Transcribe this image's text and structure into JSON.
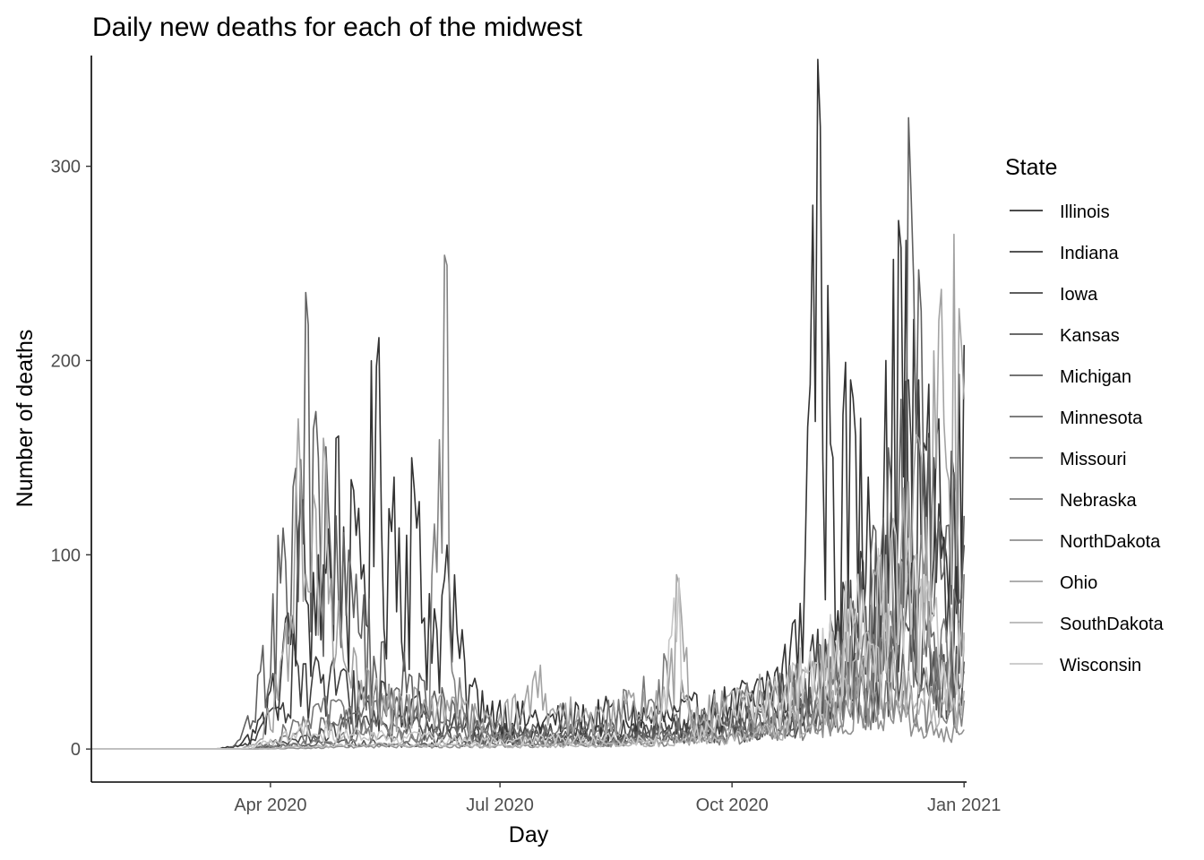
{
  "chart_data": {
    "type": "line",
    "title": "Daily new deaths for each of the midwest",
    "xlabel": "Day",
    "ylabel": "Number of deaths",
    "x_range": [
      "2020-01-21",
      "2021-01-02"
    ],
    "x_ticks": [
      {
        "date": "2020-04-01",
        "label": "Apr 2020"
      },
      {
        "date": "2020-07-01",
        "label": "Jul 2020"
      },
      {
        "date": "2020-10-01",
        "label": "Oct 2020"
      },
      {
        "date": "2021-01-01",
        "label": "Jan 2021"
      }
    ],
    "ylim": [
      -17,
      357
    ],
    "y_ticks": [
      0,
      100,
      200,
      300
    ],
    "grid": false,
    "legend": {
      "title": "State",
      "placement": "right"
    },
    "series": [
      {
        "name": "Illinois",
        "color": "#333333",
        "points": [
          [
            "2020-01-21",
            0
          ],
          [
            "2020-03-10",
            0
          ],
          [
            "2020-03-18",
            2
          ],
          [
            "2020-03-25",
            10
          ],
          [
            "2020-04-01",
            30
          ],
          [
            "2020-04-08",
            70
          ],
          [
            "2020-04-13",
            125
          ],
          [
            "2020-04-20",
            100
          ],
          [
            "2020-04-27",
            160
          ],
          [
            "2020-05-05",
            110
          ],
          [
            "2020-05-13",
            197
          ],
          [
            "2020-05-20",
            140
          ],
          [
            "2020-05-27",
            150
          ],
          [
            "2020-06-03",
            80
          ],
          [
            "2020-06-10",
            105
          ],
          [
            "2020-06-17",
            45
          ],
          [
            "2020-06-24",
            30
          ],
          [
            "2020-07-01",
            25
          ],
          [
            "2020-07-15",
            20
          ],
          [
            "2020-08-01",
            22
          ],
          [
            "2020-08-15",
            24
          ],
          [
            "2020-09-01",
            22
          ],
          [
            "2020-09-15",
            25
          ],
          [
            "2020-10-01",
            30
          ],
          [
            "2020-10-15",
            40
          ],
          [
            "2020-10-28",
            75
          ],
          [
            "2020-11-02",
            280
          ],
          [
            "2020-11-04",
            355
          ],
          [
            "2020-11-10",
            150
          ],
          [
            "2020-11-17",
            190
          ],
          [
            "2020-11-24",
            140
          ],
          [
            "2020-12-01",
            200
          ],
          [
            "2020-12-07",
            258
          ],
          [
            "2020-12-14",
            190
          ],
          [
            "2020-12-21",
            160
          ],
          [
            "2020-12-28",
            140
          ],
          [
            "2021-01-01",
            208
          ]
        ]
      },
      {
        "name": "Indiana",
        "color": "#3d3d3d",
        "points": [
          [
            "2020-01-21",
            0
          ],
          [
            "2020-03-15",
            0
          ],
          [
            "2020-03-25",
            5
          ],
          [
            "2020-04-01",
            20
          ],
          [
            "2020-04-10",
            60
          ],
          [
            "2020-04-20",
            45
          ],
          [
            "2020-05-01",
            40
          ],
          [
            "2020-05-15",
            35
          ],
          [
            "2020-06-01",
            25
          ],
          [
            "2020-06-15",
            15
          ],
          [
            "2020-07-01",
            12
          ],
          [
            "2020-08-01",
            14
          ],
          [
            "2020-09-01",
            15
          ],
          [
            "2020-10-01",
            20
          ],
          [
            "2020-10-20",
            35
          ],
          [
            "2020-11-01",
            50
          ],
          [
            "2020-11-15",
            80
          ],
          [
            "2020-12-01",
            110
          ],
          [
            "2020-12-10",
            190
          ],
          [
            "2020-12-20",
            150
          ],
          [
            "2021-01-01",
            105
          ]
        ]
      },
      {
        "name": "Iowa",
        "color": "#474747",
        "points": [
          [
            "2020-01-21",
            0
          ],
          [
            "2020-03-25",
            0
          ],
          [
            "2020-04-10",
            5
          ],
          [
            "2020-05-01",
            15
          ],
          [
            "2020-05-20",
            20
          ],
          [
            "2020-06-15",
            8
          ],
          [
            "2020-07-15",
            6
          ],
          [
            "2020-08-15",
            10
          ],
          [
            "2020-09-15",
            12
          ],
          [
            "2020-10-15",
            15
          ],
          [
            "2020-11-10",
            30
          ],
          [
            "2020-11-25",
            50
          ],
          [
            "2020-12-05",
            65
          ],
          [
            "2020-12-20",
            45
          ],
          [
            "2021-01-01",
            60
          ]
        ]
      },
      {
        "name": "Kansas",
        "color": "#555555",
        "points": [
          [
            "2020-01-21",
            0
          ],
          [
            "2020-03-25",
            0
          ],
          [
            "2020-04-10",
            3
          ],
          [
            "2020-05-01",
            5
          ],
          [
            "2020-06-01",
            3
          ],
          [
            "2020-07-15",
            8
          ],
          [
            "2020-08-15",
            6
          ],
          [
            "2020-09-15",
            15
          ],
          [
            "2020-10-15",
            20
          ],
          [
            "2020-11-15",
            40
          ],
          [
            "2020-12-01",
            60
          ],
          [
            "2020-12-10",
            90
          ],
          [
            "2020-12-20",
            50
          ],
          [
            "2021-01-01",
            45
          ]
        ]
      },
      {
        "name": "Michigan",
        "color": "#606060",
        "points": [
          [
            "2020-01-21",
            0
          ],
          [
            "2020-03-15",
            0
          ],
          [
            "2020-03-20",
            5
          ],
          [
            "2020-03-28",
            40
          ],
          [
            "2020-04-04",
            110
          ],
          [
            "2020-04-10",
            135
          ],
          [
            "2020-04-15",
            235
          ],
          [
            "2020-04-20",
            150
          ],
          [
            "2020-04-27",
            120
          ],
          [
            "2020-05-05",
            90
          ],
          [
            "2020-05-15",
            55
          ],
          [
            "2020-06-01",
            35
          ],
          [
            "2020-06-15",
            20
          ],
          [
            "2020-07-01",
            12
          ],
          [
            "2020-08-01",
            10
          ],
          [
            "2020-09-01",
            12
          ],
          [
            "2020-10-01",
            15
          ],
          [
            "2020-10-20",
            30
          ],
          [
            "2020-11-10",
            60
          ],
          [
            "2020-11-25",
            100
          ],
          [
            "2020-12-07",
            180
          ],
          [
            "2020-12-10",
            325
          ],
          [
            "2020-12-18",
            160
          ],
          [
            "2021-01-01",
            120
          ]
        ]
      },
      {
        "name": "Minnesota",
        "color": "#6b6b6b",
        "points": [
          [
            "2020-01-21",
            0
          ],
          [
            "2020-03-25",
            0
          ],
          [
            "2020-04-10",
            8
          ],
          [
            "2020-05-01",
            20
          ],
          [
            "2020-05-20",
            30
          ],
          [
            "2020-06-10",
            15
          ],
          [
            "2020-07-01",
            6
          ],
          [
            "2020-08-01",
            7
          ],
          [
            "2020-09-01",
            8
          ],
          [
            "2020-10-01",
            12
          ],
          [
            "2020-10-25",
            25
          ],
          [
            "2020-11-15",
            45
          ],
          [
            "2020-12-01",
            80
          ],
          [
            "2020-12-10",
            100
          ],
          [
            "2020-12-20",
            60
          ],
          [
            "2021-01-01",
            40
          ]
        ]
      },
      {
        "name": "Missouri",
        "color": "#777777",
        "points": [
          [
            "2020-01-21",
            0
          ],
          [
            "2020-03-25",
            0
          ],
          [
            "2020-04-10",
            15
          ],
          [
            "2020-04-25",
            25
          ],
          [
            "2020-05-15",
            15
          ],
          [
            "2020-06-01",
            10
          ],
          [
            "2020-06-15",
            8
          ],
          [
            "2020-07-01",
            6
          ],
          [
            "2020-08-01",
            15
          ],
          [
            "2020-08-20",
            30
          ],
          [
            "2020-09-05",
            45
          ],
          [
            "2020-09-20",
            20
          ],
          [
            "2020-10-05",
            30
          ],
          [
            "2020-10-25",
            40
          ],
          [
            "2020-11-15",
            50
          ],
          [
            "2020-12-01",
            70
          ],
          [
            "2020-12-15",
            110
          ],
          [
            "2020-12-25",
            60
          ],
          [
            "2021-01-01",
            90
          ]
        ]
      },
      {
        "name": "Nebraska",
        "color": "#828282",
        "points": [
          [
            "2020-01-21",
            0
          ],
          [
            "2020-03-25",
            0
          ],
          [
            "2020-04-20",
            5
          ],
          [
            "2020-05-10",
            10
          ],
          [
            "2020-06-01",
            8
          ],
          [
            "2020-06-10",
            249
          ],
          [
            "2020-06-12",
            40
          ],
          [
            "2020-06-25",
            10
          ],
          [
            "2020-07-15",
            5
          ],
          [
            "2020-08-15",
            5
          ],
          [
            "2020-09-15",
            6
          ],
          [
            "2020-10-15",
            10
          ],
          [
            "2020-11-15",
            25
          ],
          [
            "2020-12-01",
            35
          ],
          [
            "2020-12-15",
            30
          ],
          [
            "2021-01-01",
            25
          ]
        ]
      },
      {
        "name": "NorthDakota",
        "color": "#8f8f8f",
        "points": [
          [
            "2020-01-21",
            0
          ],
          [
            "2020-03-25",
            0
          ],
          [
            "2020-04-20",
            1
          ],
          [
            "2020-05-15",
            2
          ],
          [
            "2020-07-01",
            2
          ],
          [
            "2020-08-15",
            4
          ],
          [
            "2020-09-15",
            8
          ],
          [
            "2020-10-15",
            15
          ],
          [
            "2020-11-10",
            25
          ],
          [
            "2020-11-25",
            35
          ],
          [
            "2020-12-10",
            20
          ],
          [
            "2021-01-01",
            10
          ]
        ]
      },
      {
        "name": "Ohio",
        "color": "#a3a3a3",
        "points": [
          [
            "2020-01-21",
            0
          ],
          [
            "2020-03-20",
            0
          ],
          [
            "2020-03-28",
            5
          ],
          [
            "2020-04-06",
            50
          ],
          [
            "2020-04-12",
            170
          ],
          [
            "2020-04-15",
            90
          ],
          [
            "2020-04-22",
            160
          ],
          [
            "2020-04-29",
            60
          ],
          [
            "2020-05-10",
            40
          ],
          [
            "2020-05-20",
            30
          ],
          [
            "2020-06-10",
            25
          ],
          [
            "2020-07-01",
            18
          ],
          [
            "2020-07-15",
            40
          ],
          [
            "2020-08-01",
            20
          ],
          [
            "2020-08-15",
            25
          ],
          [
            "2020-09-01",
            30
          ],
          [
            "2020-09-10",
            85
          ],
          [
            "2020-09-15",
            20
          ],
          [
            "2020-10-01",
            30
          ],
          [
            "2020-10-15",
            35
          ],
          [
            "2020-11-01",
            40
          ],
          [
            "2020-11-15",
            60
          ],
          [
            "2020-12-01",
            100
          ],
          [
            "2020-12-15",
            150
          ],
          [
            "2020-12-28",
            265
          ],
          [
            "2021-01-01",
            180
          ]
        ]
      },
      {
        "name": "SouthDakota",
        "color": "#b5b5b5",
        "points": [
          [
            "2020-01-21",
            0
          ],
          [
            "2020-03-25",
            0
          ],
          [
            "2020-04-20",
            2
          ],
          [
            "2020-05-15",
            3
          ],
          [
            "2020-07-01",
            2
          ],
          [
            "2020-08-15",
            3
          ],
          [
            "2020-09-15",
            6
          ],
          [
            "2020-10-15",
            12
          ],
          [
            "2020-11-10",
            30
          ],
          [
            "2020-11-20",
            55
          ],
          [
            "2020-12-01",
            70
          ],
          [
            "2020-12-10",
            40
          ],
          [
            "2021-01-01",
            30
          ]
        ]
      },
      {
        "name": "Wisconsin",
        "color": "#c6c6c6",
        "points": [
          [
            "2020-01-21",
            0
          ],
          [
            "2020-03-20",
            0
          ],
          [
            "2020-04-01",
            5
          ],
          [
            "2020-04-15",
            15
          ],
          [
            "2020-05-01",
            10
          ],
          [
            "2020-06-01",
            8
          ],
          [
            "2020-07-01",
            5
          ],
          [
            "2020-08-01",
            8
          ],
          [
            "2020-09-01",
            7
          ],
          [
            "2020-09-10",
            88
          ],
          [
            "2020-09-15",
            10
          ],
          [
            "2020-10-01",
            20
          ],
          [
            "2020-10-15",
            35
          ],
          [
            "2020-11-01",
            50
          ],
          [
            "2020-11-20",
            90
          ],
          [
            "2020-12-05",
            110
          ],
          [
            "2020-12-20",
            70
          ],
          [
            "2021-01-01",
            60
          ]
        ]
      }
    ]
  }
}
